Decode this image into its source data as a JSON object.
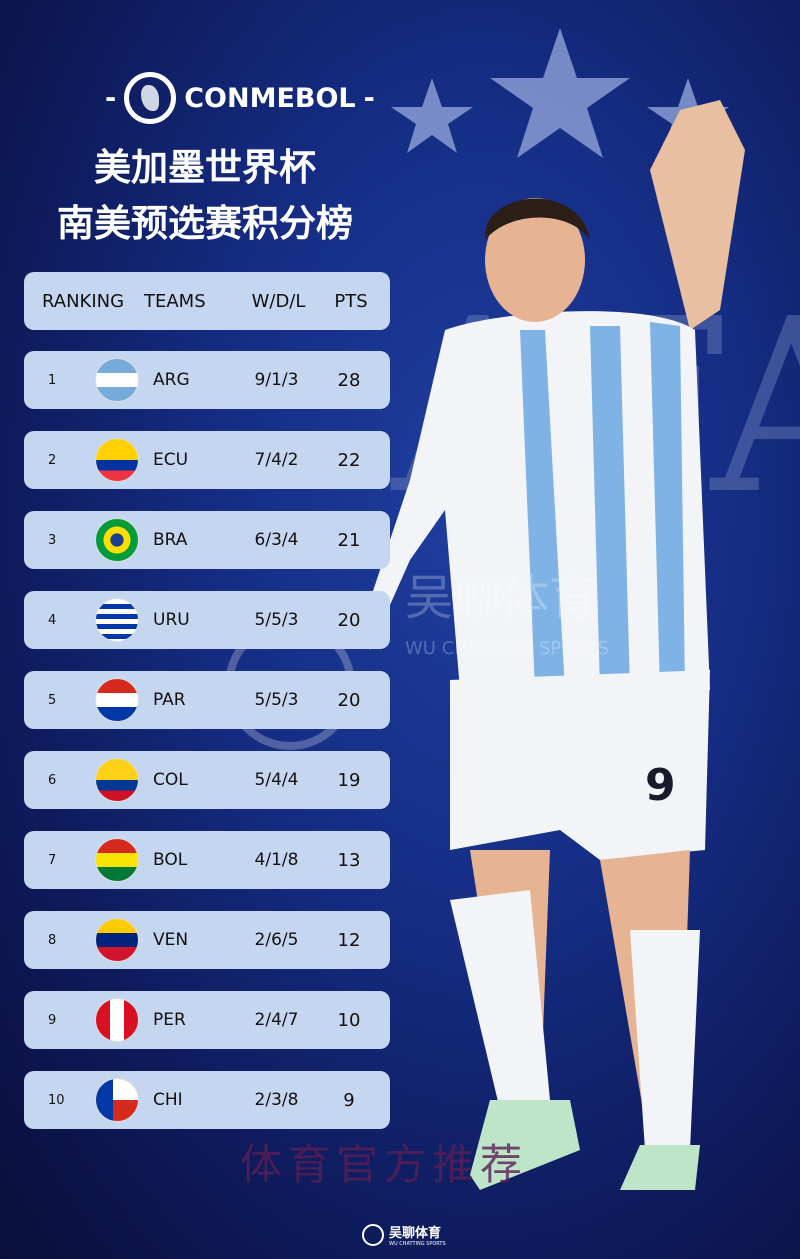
{
  "logo": {
    "text": "CONMEBOL",
    "dash_left": "-",
    "dash_right": "-"
  },
  "title": {
    "line1": "美加墨世界杯",
    "line2": "南美预选赛积分榜"
  },
  "table": {
    "headers": [
      "RANKING",
      "TEAMS",
      "W/D/L",
      "PTS"
    ],
    "rows": [
      {
        "rank": "1",
        "team": "ARG",
        "wdl": "9/1/3",
        "pts": "28"
      },
      {
        "rank": "2",
        "team": "ECU",
        "wdl": "7/4/2",
        "pts": "22"
      },
      {
        "rank": "3",
        "team": "BRA",
        "wdl": "6/3/4",
        "pts": "21"
      },
      {
        "rank": "4",
        "team": "URU",
        "wdl": "5/5/3",
        "pts": "20"
      },
      {
        "rank": "5",
        "team": "PAR",
        "wdl": "5/5/3",
        "pts": "20"
      },
      {
        "rank": "6",
        "team": "COL",
        "wdl": "5/4/4",
        "pts": "19"
      },
      {
        "rank": "7",
        "team": "BOL",
        "wdl": "4/1/8",
        "pts": "13"
      },
      {
        "rank": "8",
        "team": "VEN",
        "wdl": "2/6/5",
        "pts": "12"
      },
      {
        "rank": "9",
        "team": "PER",
        "wdl": "2/4/7",
        "pts": "10"
      },
      {
        "rank": "10",
        "team": "CHI",
        "wdl": "2/3/8",
        "pts": "9"
      }
    ]
  },
  "background": {
    "afa_letters": "AFA",
    "jersey_number": "9"
  },
  "watermark": {
    "cn": "吴聊体育",
    "en": "WU CHATTING SPORTS"
  },
  "footer": {
    "slogan": "体育官方推荐",
    "brand_cn": "吴聊体育",
    "brand_en": "WU CHATTING SPORTS"
  }
}
